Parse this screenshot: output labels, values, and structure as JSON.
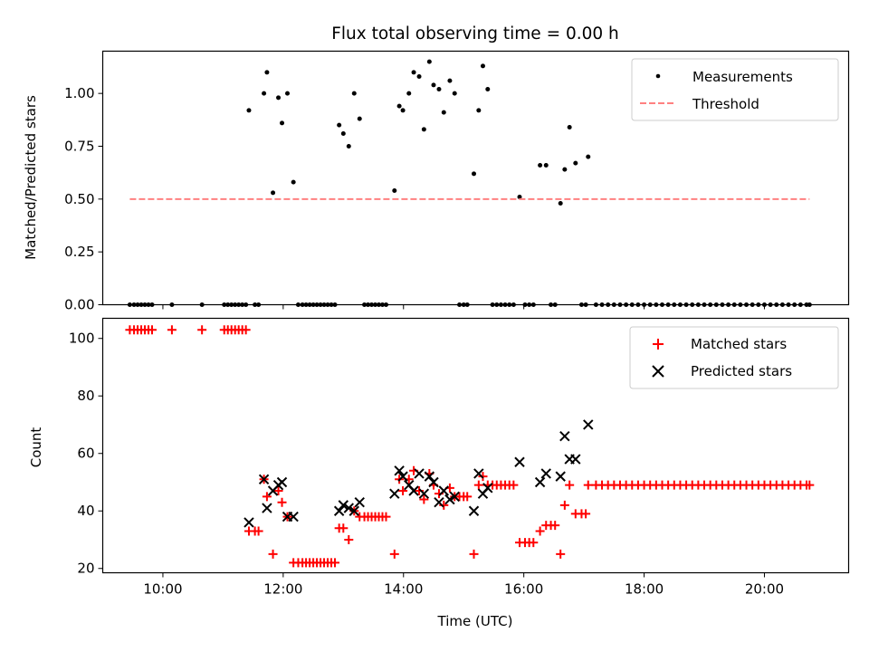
{
  "chart_data": [
    {
      "type": "scatter",
      "title": "Flux total observing time = 0.00 h",
      "xlabel": "",
      "ylabel": "Matched/Predicted stars",
      "xlim": [
        9.0,
        21.4
      ],
      "ylim": [
        0.0,
        1.2
      ],
      "yticks": [
        0.0,
        0.25,
        0.5,
        0.75,
        1.0
      ],
      "ytick_labels": [
        "0.00",
        "0.25",
        "0.50",
        "0.75",
        "1.00"
      ],
      "legend_position": "top-right",
      "series": [
        {
          "name": "Measurements",
          "marker": "dot",
          "color": "#000000",
          "x": [
            9.45,
            9.52,
            9.58,
            9.64,
            9.7,
            9.76,
            9.82,
            10.15,
            10.65,
            11.02,
            11.08,
            11.14,
            11.2,
            11.26,
            11.32,
            11.38,
            11.43,
            11.53,
            11.59,
            11.68,
            11.73,
            11.83,
            11.92,
            11.98,
            12.07,
            12.17,
            12.25,
            12.32,
            12.38,
            12.44,
            12.5,
            12.56,
            12.62,
            12.68,
            12.74,
            12.8,
            12.86,
            12.93,
            13.0,
            13.09,
            13.18,
            13.27,
            13.35,
            13.41,
            13.47,
            13.53,
            13.59,
            13.65,
            13.71,
            13.85,
            13.93,
            13.99,
            14.09,
            14.17,
            14.26,
            14.34,
            14.43,
            14.5,
            14.59,
            14.67,
            14.77,
            14.85,
            14.93,
            15.0,
            15.06,
            15.17,
            15.25,
            15.32,
            15.4,
            15.48,
            15.55,
            15.62,
            15.69,
            15.76,
            15.83,
            15.93,
            16.02,
            16.09,
            16.16,
            16.27,
            16.37,
            16.45,
            16.52,
            16.61,
            16.68,
            16.76,
            16.86,
            16.96,
            17.03,
            17.07,
            17.2,
            17.3,
            17.4,
            17.5,
            17.6,
            17.7,
            17.8,
            17.9,
            18.0,
            18.1,
            18.2,
            18.3,
            18.4,
            18.5,
            18.6,
            18.7,
            18.8,
            18.9,
            19.0,
            19.1,
            19.2,
            19.3,
            19.4,
            19.5,
            19.6,
            19.7,
            19.8,
            19.9,
            20.0,
            20.1,
            20.2,
            20.3,
            20.4,
            20.5,
            20.6,
            20.7,
            20.75
          ],
          "y": [
            0,
            0,
            0,
            0,
            0,
            0,
            0,
            0,
            0,
            0,
            0,
            0,
            0,
            0,
            0,
            0,
            0.92,
            0,
            0,
            1.0,
            1.1,
            0.53,
            0.98,
            0.86,
            1.0,
            0.58,
            0,
            0,
            0,
            0,
            0,
            0,
            0,
            0,
            0,
            0,
            0,
            0.85,
            0.81,
            0.75,
            1.0,
            0.88,
            0,
            0,
            0,
            0,
            0,
            0,
            0,
            0.54,
            0.94,
            0.92,
            1.0,
            1.1,
            1.08,
            0.83,
            1.15,
            1.04,
            1.02,
            0.91,
            1.06,
            1.0,
            0,
            0,
            0,
            0.62,
            0.92,
            1.13,
            1.02,
            0,
            0,
            0,
            0,
            0,
            0,
            0.51,
            0,
            0,
            0,
            0.66,
            0.66,
            0,
            0,
            0.48,
            0.64,
            0.84,
            0.67,
            0,
            0,
            0.7,
            0,
            0,
            0,
            0,
            0,
            0,
            0,
            0,
            0,
            0,
            0,
            0,
            0,
            0,
            0,
            0,
            0,
            0,
            0,
            0,
            0,
            0,
            0,
            0,
            0,
            0,
            0,
            0,
            0,
            0,
            0,
            0,
            0,
            0,
            0,
            0,
            0
          ]
        },
        {
          "name": "Threshold",
          "marker": "dashed-line",
          "color": "#ff8080",
          "x": [
            9.45,
            20.75
          ],
          "y": [
            0.5,
            0.5
          ]
        }
      ]
    },
    {
      "type": "scatter",
      "title": "",
      "xlabel": "Time (UTC)",
      "ylabel": "Count",
      "xlim": [
        9.0,
        21.4
      ],
      "ylim": [
        18.5,
        107
      ],
      "yticks": [
        20,
        40,
        60,
        80,
        100
      ],
      "ytick_labels": [
        "20",
        "40",
        "60",
        "80",
        "100"
      ],
      "xticks": [
        10,
        12,
        14,
        16,
        18,
        20
      ],
      "xtick_labels": [
        "10:00",
        "12:00",
        "14:00",
        "16:00",
        "18:00",
        "20:00"
      ],
      "legend_position": "top-right",
      "series": [
        {
          "name": "Matched stars",
          "marker": "plus",
          "color": "#ff0000",
          "x": [
            9.45,
            9.52,
            9.58,
            9.64,
            9.7,
            9.76,
            9.82,
            10.15,
            10.65,
            11.02,
            11.08,
            11.14,
            11.2,
            11.26,
            11.32,
            11.38,
            11.43,
            11.53,
            11.59,
            11.68,
            11.73,
            11.83,
            11.92,
            11.98,
            12.07,
            12.17,
            12.25,
            12.32,
            12.38,
            12.44,
            12.5,
            12.56,
            12.62,
            12.68,
            12.74,
            12.8,
            12.86,
            12.93,
            13.0,
            13.09,
            13.18,
            13.27,
            13.35,
            13.41,
            13.47,
            13.53,
            13.59,
            13.65,
            13.71,
            13.85,
            13.93,
            13.99,
            14.09,
            14.17,
            14.26,
            14.34,
            14.43,
            14.5,
            14.59,
            14.67,
            14.77,
            14.85,
            14.93,
            15.0,
            15.06,
            15.17,
            15.25,
            15.32,
            15.4,
            15.48,
            15.55,
            15.62,
            15.69,
            15.76,
            15.83,
            15.93,
            16.02,
            16.09,
            16.16,
            16.27,
            16.37,
            16.45,
            16.52,
            16.61,
            16.68,
            16.76,
            16.86,
            16.96,
            17.03,
            17.07,
            17.2,
            17.3,
            17.4,
            17.5,
            17.6,
            17.7,
            17.8,
            17.9,
            18.0,
            18.1,
            18.2,
            18.3,
            18.4,
            18.5,
            18.6,
            18.7,
            18.8,
            18.9,
            19.0,
            19.1,
            19.2,
            19.3,
            19.4,
            19.5,
            19.6,
            19.7,
            19.8,
            19.9,
            20.0,
            20.1,
            20.2,
            20.3,
            20.4,
            20.5,
            20.6,
            20.7,
            20.75
          ],
          "y": [
            103,
            103,
            103,
            103,
            103,
            103,
            103,
            103,
            103,
            103,
            103,
            103,
            103,
            103,
            103,
            103,
            33,
            33,
            33,
            51,
            45,
            25,
            47,
            43,
            38,
            22,
            22,
            22,
            22,
            22,
            22,
            22,
            22,
            22,
            22,
            22,
            22,
            34,
            34,
            30,
            40,
            38,
            38,
            38,
            38,
            38,
            38,
            38,
            38,
            25,
            51,
            47,
            51,
            54,
            47,
            44,
            53,
            49,
            46,
            42,
            48,
            45,
            45,
            45,
            45,
            25,
            49,
            52,
            49,
            49,
            49,
            49,
            49,
            49,
            49,
            29,
            29,
            29,
            29,
            33,
            35,
            35,
            35,
            25,
            42,
            49,
            39,
            39,
            39,
            49,
            49,
            49,
            49,
            49,
            49,
            49,
            49,
            49,
            49,
            49,
            49,
            49,
            49,
            49,
            49,
            49,
            49,
            49,
            49,
            49,
            49,
            49,
            49,
            49,
            49,
            49,
            49,
            49,
            49,
            49,
            49,
            49,
            49,
            49,
            49,
            49,
            49
          ]
        },
        {
          "name": "Predicted stars",
          "marker": "x",
          "color": "#000000",
          "x": [
            11.43,
            11.68,
            11.73,
            11.83,
            11.92,
            11.98,
            12.07,
            12.17,
            12.93,
            13.0,
            13.09,
            13.18,
            13.27,
            13.85,
            13.93,
            13.99,
            14.09,
            14.17,
            14.26,
            14.34,
            14.43,
            14.5,
            14.59,
            14.67,
            14.77,
            14.85,
            15.17,
            15.25,
            15.32,
            15.4,
            15.93,
            16.27,
            16.37,
            16.61,
            16.68,
            16.76,
            16.86,
            17.07
          ],
          "y": [
            36,
            51,
            41,
            47,
            49,
            50,
            38,
            38,
            40,
            42,
            41,
            40,
            43,
            46,
            54,
            52,
            49,
            47,
            53,
            46,
            52,
            50,
            43,
            47,
            44,
            45,
            40,
            53,
            46,
            48,
            57,
            50,
            53,
            52,
            66,
            58,
            58,
            70
          ]
        }
      ]
    }
  ]
}
